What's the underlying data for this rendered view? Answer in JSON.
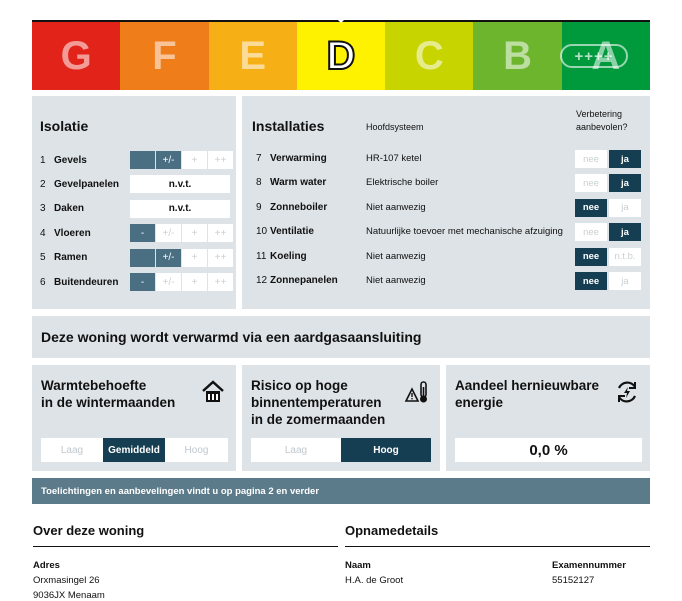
{
  "energy_label": {
    "classes": [
      {
        "letter": "G",
        "color": "#e2231a"
      },
      {
        "letter": "F",
        "color": "#ef7d1a"
      },
      {
        "letter": "E",
        "color": "#f6b015"
      },
      {
        "letter": "D",
        "color": "#fff200"
      },
      {
        "letter": "C",
        "color": "#c8d400"
      },
      {
        "letter": "B",
        "color": "#6cb52d"
      },
      {
        "letter": "A",
        "color": "#009a3d"
      }
    ],
    "active": "D",
    "a_plus": "++++"
  },
  "isolatie": {
    "title": "Isolatie",
    "rows": [
      {
        "num": "1",
        "label": "Gevels",
        "options": [
          "",
          "+/-",
          "+",
          "++"
        ],
        "selected": 1
      },
      {
        "num": "2",
        "label": "Gevelpanelen",
        "nvt": "n.v.t."
      },
      {
        "num": "3",
        "label": "Daken",
        "nvt": "n.v.t."
      },
      {
        "num": "4",
        "label": "Vloeren",
        "options": [
          "-",
          "+/-",
          "+",
          "++"
        ],
        "selected": 0
      },
      {
        "num": "5",
        "label": "Ramen",
        "options": [
          "",
          "+/-",
          "+",
          "++"
        ],
        "selected": 1
      },
      {
        "num": "6",
        "label": "Buitendeuren",
        "options": [
          "-",
          "+/-",
          "+",
          "++"
        ],
        "selected": 0
      }
    ]
  },
  "installaties": {
    "title": "Installaties",
    "col_system": "Hoofdsysteem",
    "col_improve_1": "Verbetering",
    "col_improve_2": "aanbevolen?",
    "rows": [
      {
        "num": "7",
        "label": "Verwarming",
        "system": "HR-107 ketel",
        "nee": "nee",
        "ja": "ja",
        "selected": "ja"
      },
      {
        "num": "8",
        "label": "Warm water",
        "system": "Elektrische boiler",
        "nee": "nee",
        "ja": "ja",
        "selected": "ja"
      },
      {
        "num": "9",
        "label": "Zonneboiler",
        "system": "Niet aanwezig",
        "nee": "nee",
        "ja": "ja",
        "selected": "nee"
      },
      {
        "num": "10",
        "label": "Ventilatie",
        "system": "Natuurlijke toevoer met mechanische afzuiging",
        "nee": "nee",
        "ja": "ja",
        "selected": "ja"
      },
      {
        "num": "11",
        "label": "Koeling",
        "system": "Niet aanwezig",
        "nee": "nee",
        "ja": "n.t.b.",
        "selected": "nee"
      },
      {
        "num": "12",
        "label": "Zonnepanelen",
        "system": "Niet aanwezig",
        "nee": "nee",
        "ja": "ja",
        "selected": "nee"
      }
    ]
  },
  "heating_banner": "Deze woning wordt verwarmd via een aardgasaansluiting",
  "warmte": {
    "title_1": "Warmtebehoefte",
    "title_2": "in de wintermaanden",
    "icon": "house-heating-icon",
    "options": [
      "Laag",
      "Gemiddeld",
      "Hoog"
    ],
    "selected": 1
  },
  "risico": {
    "title_1": "Risico op hoge",
    "title_2": "binnentemperaturen",
    "title_3": "in de zomermaanden",
    "icon": "thermometer-warning-icon",
    "options": [
      "Laag",
      "Hoog"
    ],
    "selected": 1
  },
  "hernieuwbaar": {
    "title_1": "Aandeel hernieuwbare",
    "title_2": "energie",
    "icon": "renewable-energy-icon",
    "value": "0,0 %"
  },
  "info_banner": "Toelichtingen en aanbevelingen vindt u op pagina 2 en verder",
  "woning": {
    "title": "Over deze woning",
    "adres_label": "Adres",
    "adres_line1": "Orxmasingel 26",
    "adres_line2": "9036JX Menaam"
  },
  "opname": {
    "title": "Opnamedetails",
    "naam_label": "Naam",
    "naam_value": "H.A. de Groot",
    "examen_label": "Examennummer",
    "examen_value": "55152127"
  },
  "colors": {
    "panel": "#dde3e7",
    "dark": "#153e52",
    "mid": "#4a6f82",
    "banner": "#5c7b8a"
  }
}
